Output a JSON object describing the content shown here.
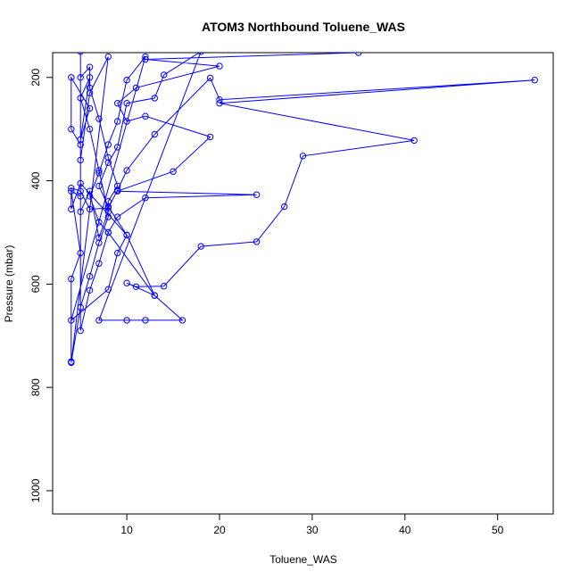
{
  "chart_data": {
    "type": "line",
    "title": "ATOM3 Northbound Toluene_WAS",
    "xlabel": "Toluene_WAS",
    "ylabel": "Pressure (mbar)",
    "xlim": [
      2.0,
      56.0
    ],
    "ylim": [
      1045,
      152
    ],
    "y_reversed": true,
    "xticks": [
      10,
      20,
      30,
      40,
      50
    ],
    "yticks": [
      200,
      400,
      600,
      800,
      1000
    ],
    "grid": false,
    "legend": "none",
    "marker": "open-circle",
    "color": "#0000ff",
    "series": [
      {
        "name": "",
        "points": [
          [
            4,
            750
          ],
          [
            4,
            590
          ],
          [
            5,
            540
          ],
          [
            4,
            420
          ],
          [
            5,
            430
          ],
          [
            5,
            460
          ],
          [
            6,
            420
          ],
          [
            7,
            510
          ],
          [
            8,
            460
          ],
          [
            7,
            380
          ],
          [
            6,
            300
          ],
          [
            5,
            240
          ],
          [
            6,
            200
          ],
          [
            5,
            320
          ],
          [
            6,
            260
          ],
          [
            4,
            200
          ],
          [
            4,
            300
          ],
          [
            5,
            330
          ],
          [
            5,
            360
          ],
          [
            6,
            230
          ],
          [
            8,
            160
          ],
          [
            4,
            752
          ],
          [
            5,
            645
          ],
          [
            6,
            585
          ],
          [
            7,
            520
          ],
          [
            8,
            470
          ],
          [
            8,
            440
          ],
          [
            9,
            410
          ],
          [
            8,
            355
          ],
          [
            7,
            280
          ],
          [
            6,
            220
          ],
          [
            6,
            180
          ],
          [
            5,
            200
          ],
          [
            5,
            150
          ],
          [
            5,
            690
          ],
          [
            6,
            612
          ],
          [
            7,
            560
          ],
          [
            8,
            500
          ],
          [
            7,
            480
          ],
          [
            6,
            430
          ],
          [
            7,
            385
          ],
          [
            8,
            330
          ],
          [
            9,
            285
          ],
          [
            10,
            205
          ],
          [
            12,
            160
          ],
          [
            4,
            670
          ],
          [
            8,
            610
          ],
          [
            9,
            540
          ],
          [
            10,
            505
          ],
          [
            8,
            450
          ],
          [
            7,
            410
          ],
          [
            8,
            365
          ],
          [
            9,
            335
          ],
          [
            10,
            250
          ],
          [
            13,
            240
          ],
          [
            14,
            195
          ],
          [
            18,
            150
          ],
          [
            7,
            670
          ],
          [
            10,
            670
          ],
          [
            12,
            670
          ],
          [
            16,
            670
          ],
          [
            13,
            622
          ],
          [
            10,
            598
          ],
          [
            11,
            605
          ],
          [
            14,
            604
          ],
          [
            18,
            527
          ],
          [
            24,
            518
          ],
          [
            27,
            450
          ],
          [
            29,
            352
          ],
          [
            41,
            322
          ],
          [
            20,
            250
          ],
          [
            54,
            205
          ],
          [
            20,
            243
          ],
          [
            19,
            201
          ],
          [
            13,
            310
          ],
          [
            10,
            380
          ],
          [
            9,
            418
          ],
          [
            8,
            453
          ],
          [
            6,
            455
          ],
          [
            5,
            420
          ],
          [
            4,
            414
          ],
          [
            4,
            455
          ],
          [
            5,
            405
          ],
          [
            10,
            505
          ],
          [
            13,
            622
          ],
          [
            8,
            500
          ],
          [
            9,
            470
          ],
          [
            12,
            433
          ],
          [
            24,
            427
          ],
          [
            9,
            420
          ],
          [
            15,
            382
          ],
          [
            19,
            315
          ],
          [
            12,
            275
          ],
          [
            10,
            285
          ],
          [
            9,
            250
          ],
          [
            11,
            220
          ],
          [
            20,
            178
          ],
          [
            12,
            165
          ],
          [
            35,
            152
          ]
        ]
      }
    ]
  }
}
